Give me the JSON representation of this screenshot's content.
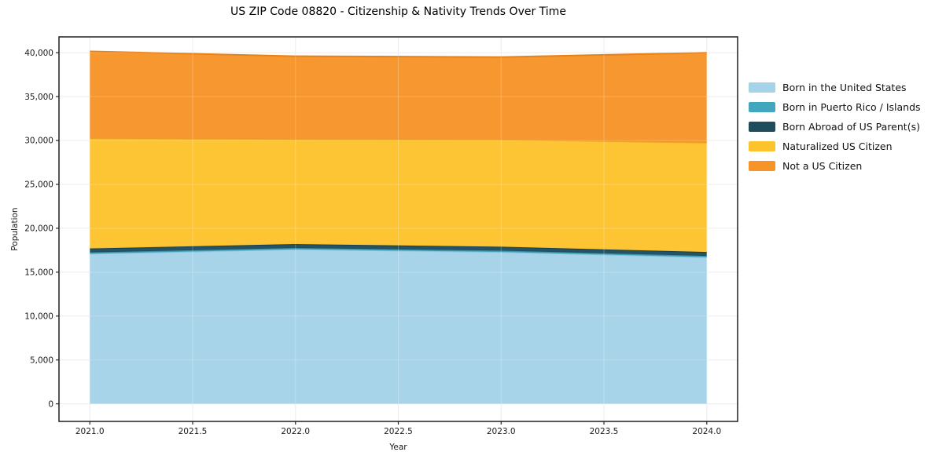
{
  "chart_data": {
    "type": "area",
    "stacked": true,
    "title": "US ZIP Code 08820 - Citizenship & Nativity Trends Over Time",
    "xlabel": "Year",
    "ylabel": "Population",
    "x": [
      2021,
      2022,
      2023,
      2024
    ],
    "series": [
      {
        "name": "Born in the United States",
        "color": "#A5D3E8",
        "edge": "#8CC2DC",
        "values": [
          17100,
          17600,
          17300,
          16700
        ]
      },
      {
        "name": "Born in Puerto Rico / Islands",
        "color": "#41A6BE",
        "edge": "#3795AD",
        "values": [
          150,
          150,
          150,
          150
        ]
      },
      {
        "name": "Born Abroad of US Parent(s)",
        "color": "#1F4D5E",
        "edge": "#1A4150",
        "values": [
          450,
          450,
          450,
          450
        ]
      },
      {
        "name": "Naturalized US Citizen",
        "color": "#FDC32D",
        "edge": "#EDA81F",
        "values": [
          12550,
          11950,
          12200,
          12450
        ]
      },
      {
        "name": "Not a US Citizen",
        "color": "#F79428",
        "edge": "#E5821A",
        "values": [
          9900,
          9450,
          9400,
          10250
        ]
      }
    ],
    "xticks": {
      "values": [
        2021,
        2021.5,
        2022,
        2022.5,
        2023,
        2023.5,
        2024
      ],
      "labels": [
        "2021.0",
        "2021.5",
        "2022.0",
        "2022.5",
        "2023.0",
        "2023.5",
        "2024.0"
      ]
    },
    "yticks": {
      "values": [
        0,
        5000,
        10000,
        15000,
        20000,
        25000,
        30000,
        35000,
        40000
      ],
      "labels": [
        "0",
        "5,000",
        "10,000",
        "15,000",
        "20,000",
        "25,000",
        "30,000",
        "35,000",
        "40,000"
      ]
    },
    "xlim": [
      2020.85,
      2024.15
    ],
    "ylim": [
      -2000,
      41800
    ],
    "grid": true,
    "legend_position": "right-outside",
    "colors": {
      "gridline": "#e7e7e7",
      "axis_border": "#1f1f1f",
      "tick": "#262626",
      "tick_label": "#1a1a1a"
    }
  }
}
